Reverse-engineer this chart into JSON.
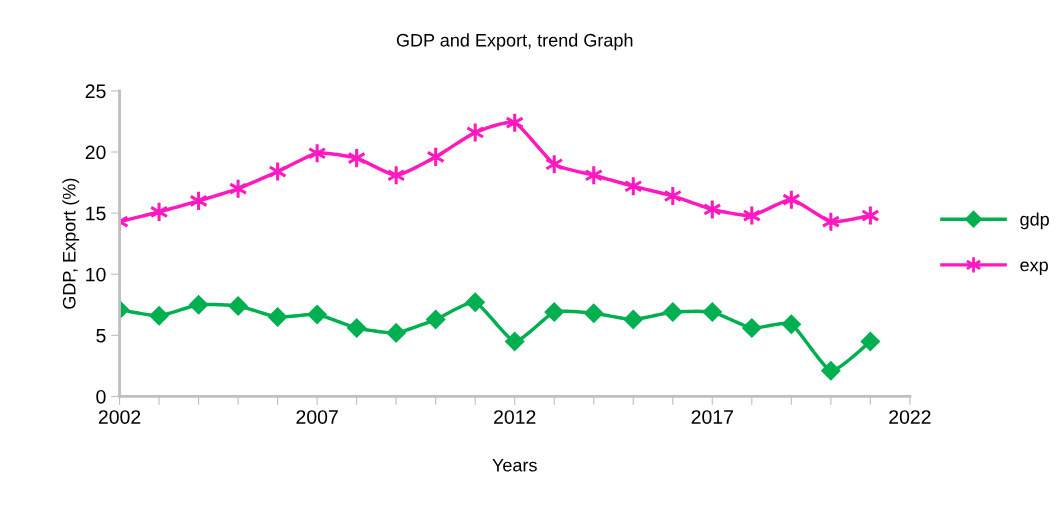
{
  "chart_data": {
    "type": "line",
    "title": "GDP and Export, trend Graph",
    "xlabel": "Years",
    "ylabel": "GDP, Export (%)",
    "x": [
      2002,
      2003,
      2004,
      2005,
      2006,
      2007,
      2008,
      2009,
      2010,
      2011,
      2012,
      2013,
      2014,
      2015,
      2016,
      2017,
      2018,
      2019,
      2020,
      2021
    ],
    "series": [
      {
        "name": "gdp",
        "color": "#00b050",
        "marker": "diamond",
        "values": [
          7.1,
          6.6,
          7.5,
          7.4,
          6.5,
          6.7,
          5.6,
          5.2,
          6.3,
          7.7,
          4.5,
          6.9,
          6.8,
          6.3,
          6.9,
          6.9,
          5.6,
          5.9,
          2.1,
          4.5
        ]
      },
      {
        "name": "exp",
        "color": "#ff19c0",
        "marker": "cross",
        "values": [
          14.3,
          15.1,
          16.0,
          17.0,
          18.4,
          19.9,
          19.5,
          18.1,
          19.6,
          21.6,
          22.4,
          19.0,
          18.1,
          17.2,
          16.4,
          15.3,
          14.8,
          16.1,
          14.3,
          14.8
        ]
      }
    ],
    "xlim": [
      2002,
      2022
    ],
    "xticks": [
      2002,
      {
        "value": 2003,
        "label": null
      },
      {
        "value": 2004,
        "label": null
      },
      {
        "value": 2005,
        "label": null
      },
      {
        "value": 2006,
        "label": null
      },
      2007,
      {
        "value": 2008,
        "label": null
      },
      {
        "value": 2009,
        "label": null
      },
      {
        "value": 2010,
        "label": null
      },
      {
        "value": 2011,
        "label": null
      },
      2012,
      {
        "value": 2013,
        "label": null
      },
      {
        "value": 2014,
        "label": null
      },
      {
        "value": 2015,
        "label": null
      },
      {
        "value": 2016,
        "label": null
      },
      2017,
      {
        "value": 2018,
        "label": null
      },
      {
        "value": 2019,
        "label": null
      },
      {
        "value": 2020,
        "label": null
      },
      {
        "value": 2021,
        "label": null
      },
      2022
    ],
    "ylim": [
      0,
      25
    ],
    "yticks": [
      0,
      5,
      10,
      15,
      20,
      25
    ],
    "grid": false,
    "legend": "right",
    "line_style": "solid"
  }
}
